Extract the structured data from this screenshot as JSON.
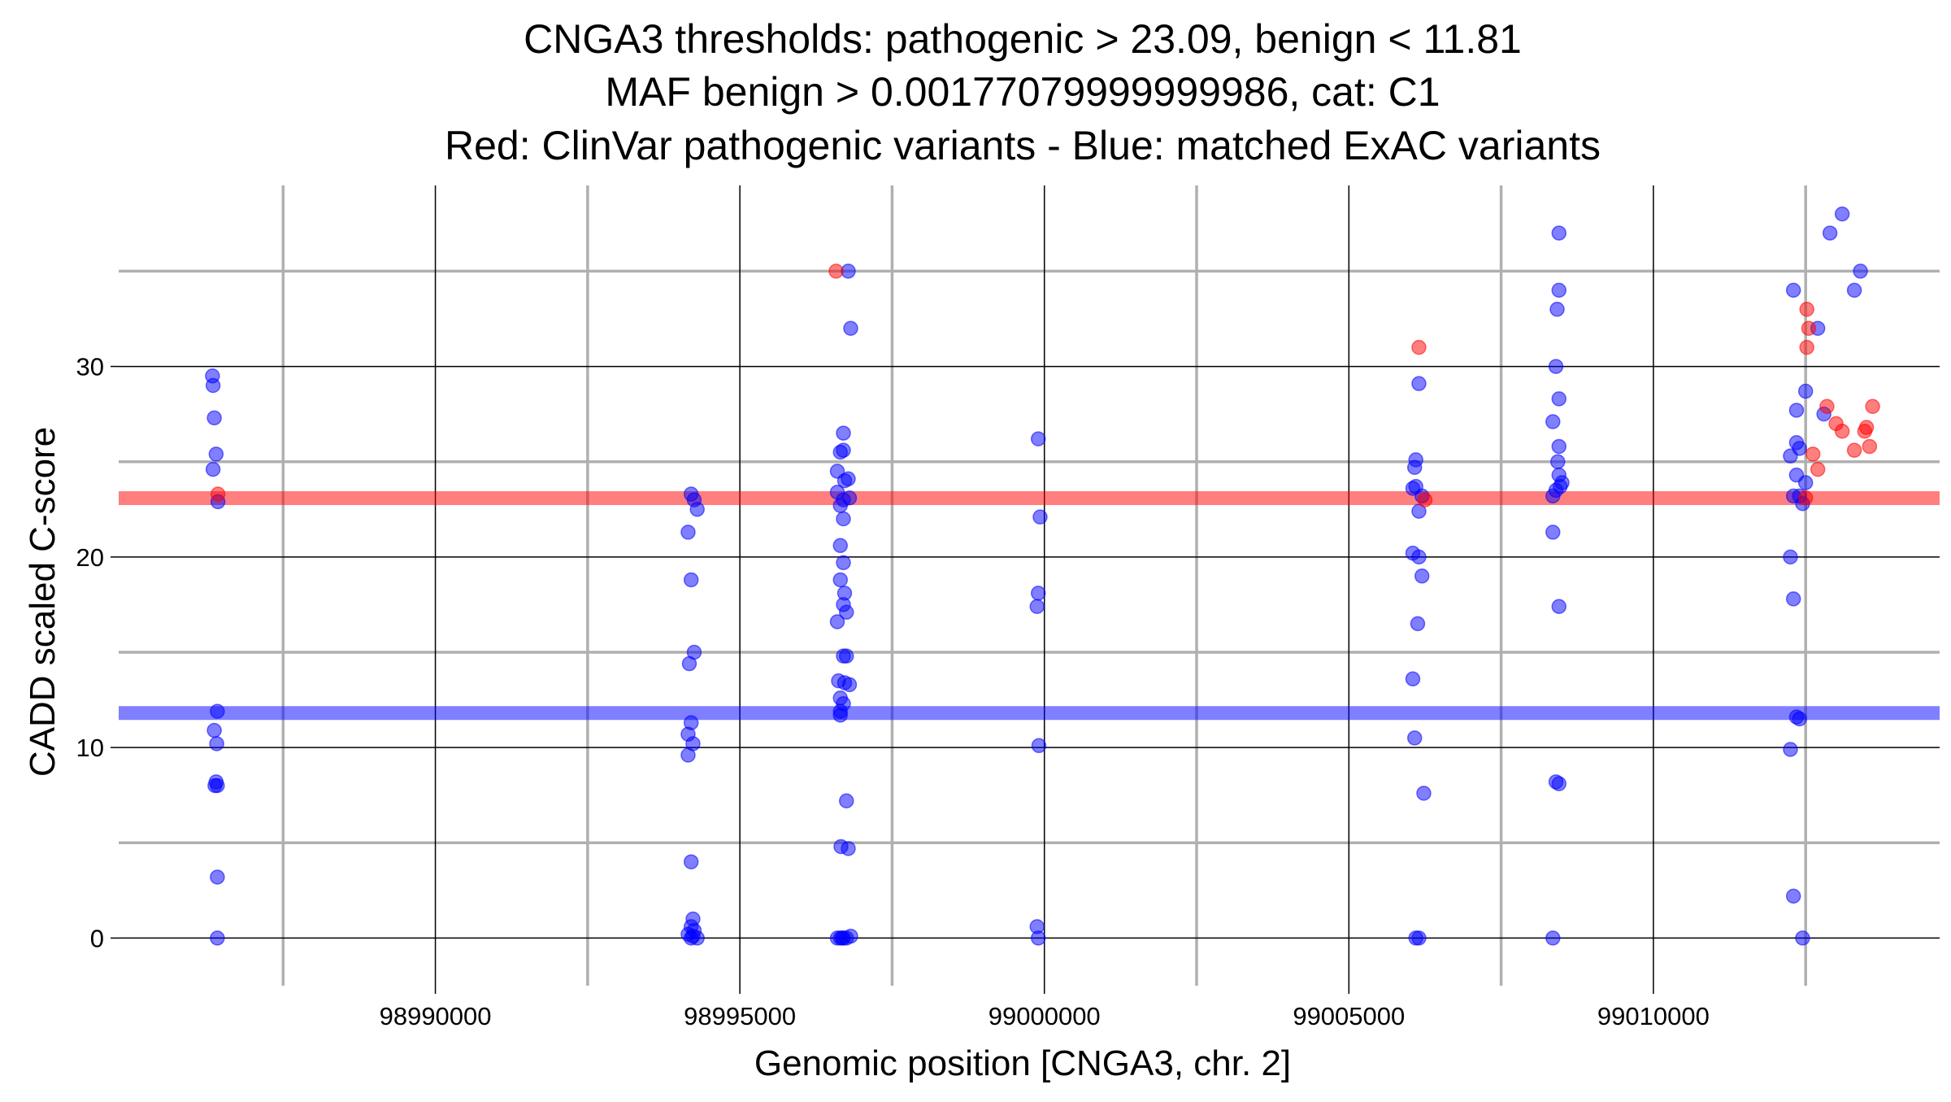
{
  "chart_data": {
    "type": "scatter",
    "title_lines": [
      "CNGA3 thresholds: pathogenic > 23.09, benign < 11.81",
      "MAF benign > 0.00177079999999986, cat: C1",
      "Red: ClinVar pathogenic variants - Blue: matched ExAC variants"
    ],
    "xlabel": "Genomic position [CNGA3, chr. 2]",
    "ylabel": "CADD scaled C-score",
    "xlim": [
      98984800,
      99014700
    ],
    "ylim": [
      -2.5,
      39.5
    ],
    "x_major_ticks": [
      98990000,
      98995000,
      99000000,
      99005000,
      99010000
    ],
    "x_minor_ticks": [
      98987500,
      98992500,
      98997500,
      99002500,
      99007500,
      99012500
    ],
    "y_major_ticks": [
      0,
      10,
      20,
      30
    ],
    "y_minor_ticks": [
      5,
      15,
      25,
      35
    ],
    "x_tick_labels": [
      "98990000",
      "98995000",
      "99000000",
      "99005000",
      "99010000"
    ],
    "y_tick_labels": [
      "0",
      "10",
      "20",
      "30"
    ],
    "thresholds": {
      "pathogenic": {
        "value": 23.09,
        "color": "#ff0000"
      },
      "benign": {
        "value": 11.81,
        "color": "#0000ff"
      }
    },
    "series": [
      {
        "name": "ClinVar pathogenic variants",
        "color": "#ff0000",
        "points": [
          [
            98986430,
            23.3
          ],
          [
            98996580,
            35.0
          ],
          [
            99006150,
            31.0
          ],
          [
            99006250,
            23.0
          ],
          [
            99012500,
            23.1
          ],
          [
            99012520,
            33.0
          ],
          [
            99012550,
            32.0
          ],
          [
            99012520,
            31.0
          ],
          [
            99012620,
            25.4
          ],
          [
            99012700,
            24.6
          ],
          [
            99012850,
            27.9
          ],
          [
            99013000,
            27.0
          ],
          [
            99013100,
            26.6
          ],
          [
            99013300,
            25.6
          ],
          [
            99013470,
            26.6
          ],
          [
            99013500,
            26.8
          ],
          [
            99013550,
            25.8
          ],
          [
            99013600,
            27.9
          ]
        ]
      },
      {
        "name": "matched ExAC variants",
        "color": "#0000ff",
        "points": [
          [
            98986340,
            29.5
          ],
          [
            98986350,
            29.0
          ],
          [
            98986370,
            27.3
          ],
          [
            98986400,
            25.4
          ],
          [
            98986350,
            24.6
          ],
          [
            98986430,
            22.9
          ],
          [
            98986420,
            11.9
          ],
          [
            98986370,
            10.9
          ],
          [
            98986410,
            10.2
          ],
          [
            98986400,
            8.2
          ],
          [
            98986380,
            8.0
          ],
          [
            98986420,
            8.0
          ],
          [
            98986420,
            3.2
          ],
          [
            98986420,
            0.0
          ],
          [
            98994200,
            23.3
          ],
          [
            98994250,
            23.0
          ],
          [
            98994300,
            22.5
          ],
          [
            98994150,
            21.3
          ],
          [
            98994200,
            18.8
          ],
          [
            98994250,
            15.0
          ],
          [
            98994170,
            14.4
          ],
          [
            98994200,
            11.3
          ],
          [
            98994150,
            10.7
          ],
          [
            98994230,
            10.2
          ],
          [
            98994150,
            9.6
          ],
          [
            98994200,
            4.0
          ],
          [
            98994230,
            1.0
          ],
          [
            98994200,
            0.6
          ],
          [
            98994250,
            0.4
          ],
          [
            98994150,
            0.2
          ],
          [
            98994200,
            0.0
          ],
          [
            98994300,
            0.0
          ],
          [
            98994230,
            0.1
          ],
          [
            98996780,
            35.0
          ],
          [
            98996820,
            32.0
          ],
          [
            98996700,
            26.5
          ],
          [
            98996650,
            25.5
          ],
          [
            98996700,
            25.6
          ],
          [
            98996600,
            24.5
          ],
          [
            98996720,
            24.0
          ],
          [
            98996780,
            24.1
          ],
          [
            98996600,
            23.4
          ],
          [
            98996700,
            23.0
          ],
          [
            98996650,
            22.7
          ],
          [
            98996800,
            23.1
          ],
          [
            98996700,
            22.0
          ],
          [
            98996650,
            20.6
          ],
          [
            98996700,
            19.7
          ],
          [
            98996650,
            18.8
          ],
          [
            98996720,
            18.1
          ],
          [
            98996700,
            17.5
          ],
          [
            98996750,
            17.1
          ],
          [
            98996600,
            16.6
          ],
          [
            98996700,
            14.8
          ],
          [
            98996750,
            14.8
          ],
          [
            98996620,
            13.5
          ],
          [
            98996720,
            13.4
          ],
          [
            98996800,
            13.3
          ],
          [
            98996650,
            12.6
          ],
          [
            98996700,
            12.3
          ],
          [
            98996650,
            11.9
          ],
          [
            98996650,
            11.7
          ],
          [
            98996750,
            7.2
          ],
          [
            98996660,
            4.8
          ],
          [
            98996780,
            4.7
          ],
          [
            98996600,
            0.0
          ],
          [
            98996650,
            0.0
          ],
          [
            98996700,
            0.0
          ],
          [
            98996750,
            0.0
          ],
          [
            98996820,
            0.1
          ],
          [
            98996680,
            0.0
          ],
          [
            98999900,
            26.2
          ],
          [
            98999930,
            22.1
          ],
          [
            98999900,
            18.1
          ],
          [
            98999880,
            17.4
          ],
          [
            98999910,
            10.1
          ],
          [
            98999880,
            0.6
          ],
          [
            98999900,
            0.0
          ],
          [
            99006150,
            29.1
          ],
          [
            99006100,
            25.1
          ],
          [
            99006080,
            24.7
          ],
          [
            99006050,
            23.6
          ],
          [
            99006100,
            23.7
          ],
          [
            99006200,
            23.2
          ],
          [
            99006150,
            22.4
          ],
          [
            99006050,
            20.2
          ],
          [
            99006150,
            20.0
          ],
          [
            99006200,
            19.0
          ],
          [
            99006130,
            16.5
          ],
          [
            99006050,
            13.6
          ],
          [
            99006080,
            10.5
          ],
          [
            99006230,
            7.6
          ],
          [
            99006100,
            0.0
          ],
          [
            99006150,
            0.0
          ],
          [
            99008450,
            37.0
          ],
          [
            99008450,
            34.0
          ],
          [
            99008420,
            33.0
          ],
          [
            99008400,
            30.0
          ],
          [
            99008450,
            28.3
          ],
          [
            99008350,
            27.1
          ],
          [
            99008450,
            25.8
          ],
          [
            99008430,
            25.0
          ],
          [
            99008450,
            24.3
          ],
          [
            99008500,
            23.9
          ],
          [
            99008470,
            23.7
          ],
          [
            99008400,
            23.5
          ],
          [
            99008350,
            23.2
          ],
          [
            99008350,
            21.3
          ],
          [
            99008450,
            17.4
          ],
          [
            99008400,
            8.2
          ],
          [
            99008450,
            8.1
          ],
          [
            99008350,
            0.0
          ],
          [
            99012300,
            34.0
          ],
          [
            99012700,
            32.0
          ],
          [
            99012500,
            28.7
          ],
          [
            99012350,
            27.7
          ],
          [
            99012800,
            27.5
          ],
          [
            99012350,
            26.0
          ],
          [
            99012400,
            25.7
          ],
          [
            99012250,
            25.3
          ],
          [
            99012350,
            24.3
          ],
          [
            99012500,
            23.9
          ],
          [
            99012300,
            23.2
          ],
          [
            99012400,
            23.2
          ],
          [
            99012450,
            22.8
          ],
          [
            99012250,
            20.0
          ],
          [
            99012300,
            17.8
          ],
          [
            99012350,
            11.6
          ],
          [
            99012400,
            11.5
          ],
          [
            99012250,
            9.9
          ],
          [
            99012300,
            2.2
          ],
          [
            99012450,
            0.0
          ],
          [
            99013100,
            38.0
          ],
          [
            99012900,
            37.0
          ],
          [
            99013400,
            35.0
          ],
          [
            99013300,
            34.0
          ]
        ]
      }
    ]
  }
}
